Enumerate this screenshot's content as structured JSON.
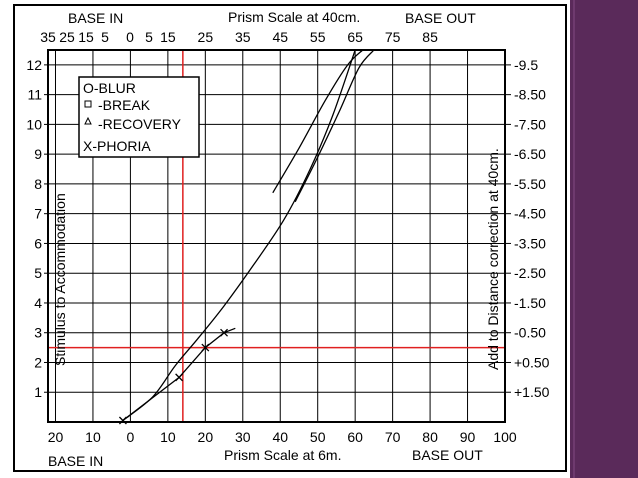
{
  "theme": {
    "slide_bg": "#ffffff",
    "side_bar_color": "#5a2a5a",
    "side_bar_stripe": "#6e3a6e",
    "frame_color": "#000000",
    "grid_color": "#000000",
    "reference_color": "#e02020",
    "curve_color": "#000000"
  },
  "chart_data": {
    "type": "line",
    "title": "",
    "top_axis": {
      "label": "Prism Scale at 40cm.",
      "base_in_label": "BASE IN",
      "base_out_label": "BASE OUT",
      "ticks": [
        "35",
        "25",
        "15",
        "5",
        "0",
        "5",
        "15",
        "25",
        "35",
        "45",
        "55",
        "65",
        "75",
        "85"
      ],
      "values": [
        -35,
        -25,
        -15,
        -5,
        0,
        5,
        15,
        25,
        35,
        45,
        55,
        65,
        75,
        85
      ]
    },
    "bottom_axis": {
      "label": "Prism Scale at 6m.",
      "base_in_label": "BASE IN",
      "base_out_label": "BASE OUT",
      "ticks": [
        "20",
        "10",
        "0",
        "10",
        "20",
        "30",
        "40",
        "50",
        "60",
        "70",
        "80",
        "90",
        "100"
      ],
      "values": [
        -20,
        -10,
        0,
        10,
        20,
        30,
        40,
        50,
        60,
        70,
        80,
        90,
        100
      ],
      "xlim": [
        -22,
        100
      ]
    },
    "left_axis": {
      "label": "Stimulus to Accommodation",
      "ticks": [
        "1",
        "2",
        "3",
        "4",
        "5",
        "6",
        "7",
        "8",
        "9",
        "10",
        "11",
        "12"
      ],
      "ylim": [
        0,
        12.5
      ]
    },
    "right_axis": {
      "label": "Add to Distance correction at 40cm.",
      "ticks": [
        "-9.5",
        "-8.50",
        "-7.50",
        "-6.50",
        "-5.50",
        "-4.50",
        "-3.50",
        "-2.50",
        "-1.50",
        "-0.50",
        "+0.50",
        "+1.50"
      ]
    },
    "legend": {
      "placement": "top-left",
      "items": [
        {
          "symbol": "O",
          "label": "O-BLUR"
        },
        {
          "symbol": "square",
          "label": "-BREAK"
        },
        {
          "symbol": "triangle",
          "label": "-RECOVERY"
        },
        {
          "symbol": "X",
          "label": "X-PHORIA"
        }
      ]
    },
    "reference_lines": {
      "vertical_x": 14,
      "horizontal_y": 2.5
    },
    "series": [
      {
        "kind": "curve",
        "x": [
          -2,
          6,
          12,
          18,
          25,
          33,
          41,
          48,
          54,
          60
        ],
        "y": [
          0.05,
          0.85,
          1.9,
          2.8,
          3.9,
          5.3,
          6.8,
          8.5,
          10.3,
          12.5
        ]
      },
      {
        "kind": "curve",
        "x": [
          38,
          45,
          52,
          58,
          62
        ],
        "y": [
          7.7,
          9.2,
          10.8,
          12.0,
          12.5
        ]
      },
      {
        "kind": "curve",
        "x": [
          44,
          50,
          56,
          61,
          65
        ],
        "y": [
          7.4,
          8.9,
          10.5,
          11.9,
          12.5
        ]
      },
      {
        "kind": "phoria",
        "x": [
          -2,
          13,
          20,
          25,
          28
        ],
        "y": [
          0.05,
          1.5,
          2.5,
          3.0,
          3.15
        ],
        "markers": [
          {
            "x": -2,
            "y": 0.05
          },
          {
            "x": 13,
            "y": 1.5
          },
          {
            "x": 20,
            "y": 2.5
          },
          {
            "x": 25,
            "y": 3.0
          }
        ]
      }
    ]
  }
}
